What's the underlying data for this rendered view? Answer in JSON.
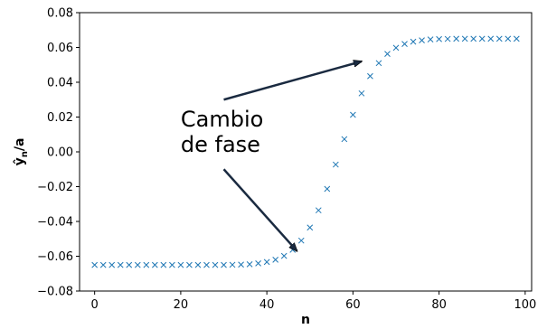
{
  "chart_data": {
    "type": "scatter",
    "title": "",
    "xlabel": "n",
    "ylabel": "ŷ",
    "ylabel_sub": "n",
    "ylabel_suffix": "/a",
    "xlim": [
      -3.5,
      101.5
    ],
    "ylim": [
      -0.08,
      0.08
    ],
    "x_ticks": [
      0,
      20,
      40,
      60,
      80,
      100
    ],
    "y_ticks": [
      -0.08,
      -0.06,
      -0.04,
      -0.02,
      0.0,
      0.02,
      0.04,
      0.06,
      0.08
    ],
    "y_tick_labels": [
      "−0.08",
      "−0.06",
      "−0.04",
      "−0.02",
      "0.00",
      "0.02",
      "0.04",
      "0.06",
      "0.08"
    ],
    "grid": false,
    "marker": "x",
    "marker_color": "#1f77b4",
    "series": [
      {
        "x": [
          0,
          2,
          4,
          6,
          8,
          10,
          12,
          14,
          16,
          18,
          20,
          22,
          24,
          26,
          28,
          30,
          32,
          34,
          36,
          38,
          40,
          42,
          44,
          46,
          48,
          50,
          52,
          54,
          56,
          58,
          60,
          62,
          64,
          66,
          68,
          70,
          72,
          74,
          76,
          78,
          80,
          82,
          84,
          86,
          88,
          90,
          92,
          94,
          96,
          98
        ],
        "values": [
          -0.065,
          -0.065,
          -0.065,
          -0.065,
          -0.065,
          -0.065,
          -0.065,
          -0.065,
          -0.065,
          -0.065,
          -0.065,
          -0.065,
          -0.065,
          -0.065,
          -0.065,
          -0.065,
          -0.0649,
          -0.0648,
          -0.0646,
          -0.0641,
          -0.0633,
          -0.062,
          -0.0598,
          -0.0563,
          -0.051,
          -0.0435,
          -0.0336,
          -0.0213,
          -0.0073,
          0.0073,
          0.0213,
          0.0336,
          0.0435,
          0.051,
          0.0563,
          0.0598,
          0.062,
          0.0633,
          0.0641,
          0.0646,
          0.0648,
          0.0649,
          0.065,
          0.065,
          0.065,
          0.065,
          0.065,
          0.065,
          0.065,
          0.065
        ]
      }
    ],
    "annotation": {
      "text_lines": [
        "Cambio",
        "de fase"
      ],
      "text_x": 20,
      "text_y": 0.0,
      "arrows": [
        {
          "from": [
            30,
            0.03
          ],
          "to": [
            62,
            0.052
          ]
        },
        {
          "from": [
            30,
            -0.01
          ],
          "to": [
            47,
            -0.057
          ]
        }
      ]
    }
  }
}
